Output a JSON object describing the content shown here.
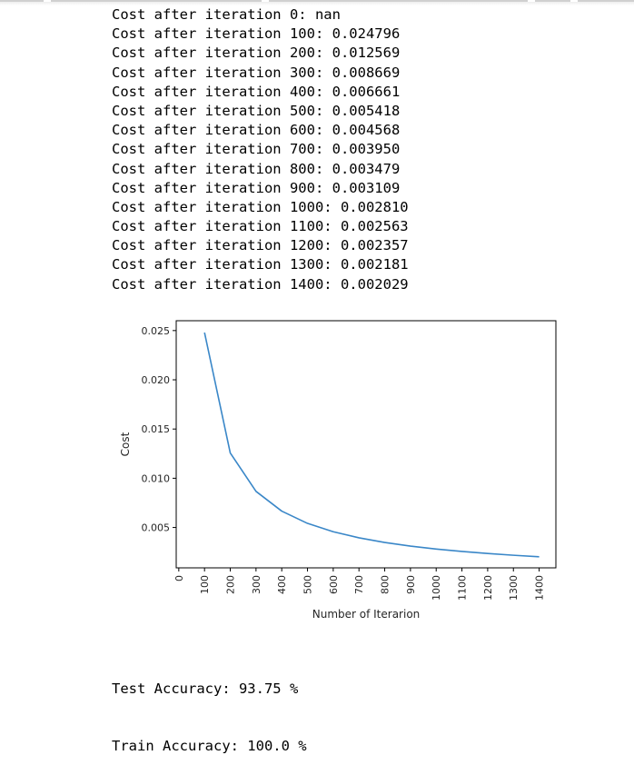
{
  "log": {
    "lines": [
      "Cost after iteration 0: nan",
      "Cost after iteration 100: 0.024796",
      "Cost after iteration 200: 0.012569",
      "Cost after iteration 300: 0.008669",
      "Cost after iteration 400: 0.006661",
      "Cost after iteration 500: 0.005418",
      "Cost after iteration 600: 0.004568",
      "Cost after iteration 700: 0.003950",
      "Cost after iteration 800: 0.003479",
      "Cost after iteration 900: 0.003109",
      "Cost after iteration 1000: 0.002810",
      "Cost after iteration 1100: 0.002563",
      "Cost after iteration 1200: 0.002357",
      "Cost after iteration 1300: 0.002181",
      "Cost after iteration 1400: 0.002029"
    ]
  },
  "chart_data": {
    "type": "line",
    "xlabel": "Number of Iterarion",
    "ylabel": "Cost",
    "x": [
      100,
      200,
      300,
      400,
      500,
      600,
      700,
      800,
      900,
      1000,
      1100,
      1200,
      1300,
      1400
    ],
    "series": [
      {
        "values": [
          0.024796,
          0.012569,
          0.008669,
          0.006661,
          0.005418,
          0.004568,
          0.00395,
          0.003479,
          0.003109,
          0.00281,
          0.002563,
          0.002357,
          0.002181,
          0.002029
        ],
        "color": "#3a87c8"
      }
    ],
    "xticks": [
      "0",
      "100",
      "200",
      "300",
      "400",
      "500",
      "600",
      "700",
      "800",
      "900",
      "1000",
      "1100",
      "1200",
      "1300",
      "1400"
    ],
    "yticks": [
      "0.005",
      "0.010",
      "0.015",
      "0.020",
      "0.025"
    ],
    "xlim": [
      -10,
      1465
    ],
    "ylim": [
      0.0009,
      0.026
    ],
    "grid": false,
    "legend": "none"
  },
  "results": {
    "test_accuracy": "Test Accuracy: 93.75 %",
    "train_accuracy": "Train Accuracy: 100.0 %"
  }
}
